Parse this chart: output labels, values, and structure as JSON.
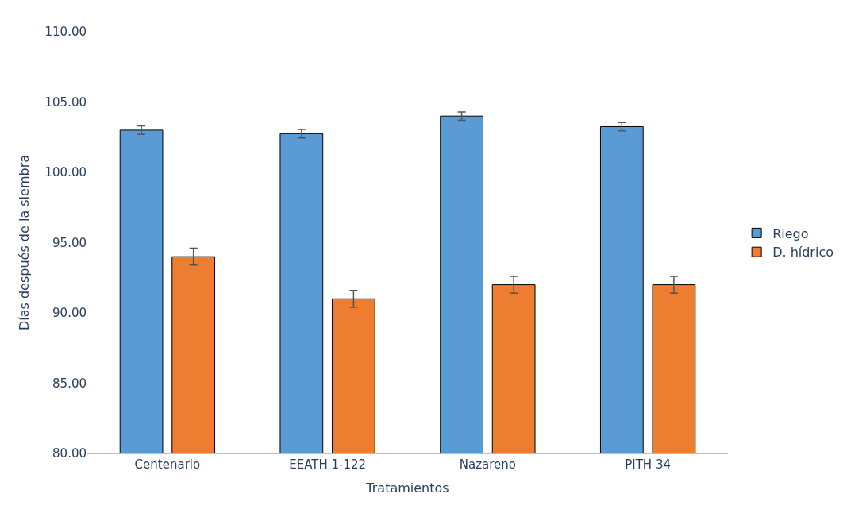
{
  "chart_data": {
    "type": "bar",
    "xlabel": "Tratamientos",
    "ylabel": "Días después de la siembra",
    "categories": [
      "Centenario",
      "EEATH 1-122",
      "Nazareno",
      "PITH 34"
    ],
    "series": [
      {
        "name": "Riego",
        "color": "#5b9bd5",
        "values": [
          103.0,
          102.75,
          104.0,
          103.25
        ],
        "errors": [
          0.3,
          0.3,
          0.3,
          0.3
        ]
      },
      {
        "name": "D. hídrico",
        "color": "#ed7d31",
        "values": [
          94.0,
          91.0,
          92.0,
          92.0
        ],
        "errors": [
          0.6,
          0.6,
          0.6,
          0.6
        ]
      }
    ],
    "ylim": [
      80,
      110
    ],
    "yticks": [
      {
        "value": 80,
        "label": "80.00"
      },
      {
        "value": 85,
        "label": "85.00"
      },
      {
        "value": 90,
        "label": "90.00"
      },
      {
        "value": 95,
        "label": "95.00"
      },
      {
        "value": 100,
        "label": "100.00"
      },
      {
        "value": 105,
        "label": "105.00"
      },
      {
        "value": 110,
        "label": "110.00"
      }
    ],
    "grid": false,
    "legend": "right"
  }
}
